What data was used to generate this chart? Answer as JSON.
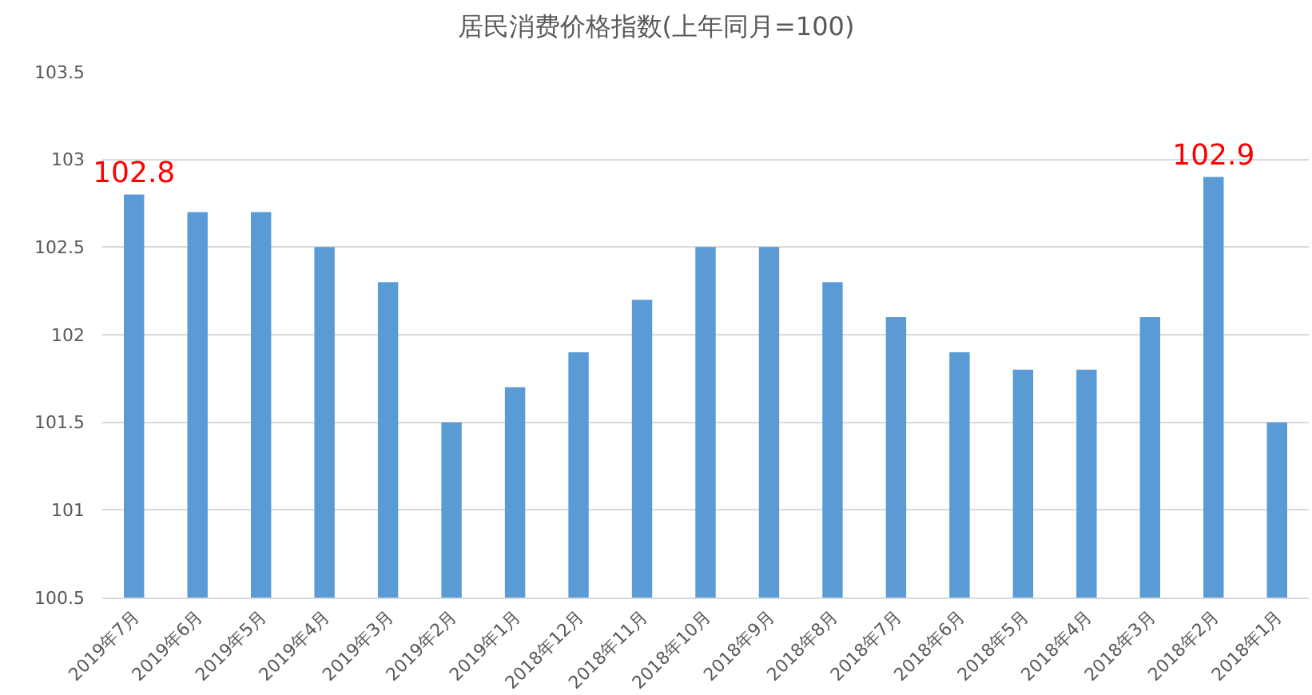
{
  "chart_data": {
    "type": "bar",
    "title": "居民消费价格指数(上年同月=100)",
    "categories": [
      "2019年7月",
      "2019年6月",
      "2019年5月",
      "2019年4月",
      "2019年3月",
      "2019年2月",
      "2019年1月",
      "2018年12月",
      "2018年11月",
      "2018年10月",
      "2018年9月",
      "2018年8月",
      "2018年7月",
      "2018年6月",
      "2018年5月",
      "2018年4月",
      "2018年3月",
      "2018年2月",
      "2018年1月"
    ],
    "values": [
      102.8,
      102.7,
      102.7,
      102.5,
      102.3,
      101.5,
      101.7,
      101.9,
      102.2,
      102.5,
      102.5,
      102.3,
      102.1,
      101.9,
      101.8,
      101.8,
      102.1,
      102.9,
      101.5
    ],
    "value_labels": [
      "102.8",
      null,
      null,
      null,
      null,
      null,
      null,
      null,
      null,
      null,
      null,
      null,
      null,
      null,
      null,
      null,
      null,
      "102.9",
      null
    ],
    "color": "#5b9bd5",
    "ylim": [
      100.5,
      103.5
    ],
    "yticks": [
      100.5,
      101,
      101.5,
      102,
      102.5,
      103,
      103.5
    ],
    "grid": "y"
  }
}
